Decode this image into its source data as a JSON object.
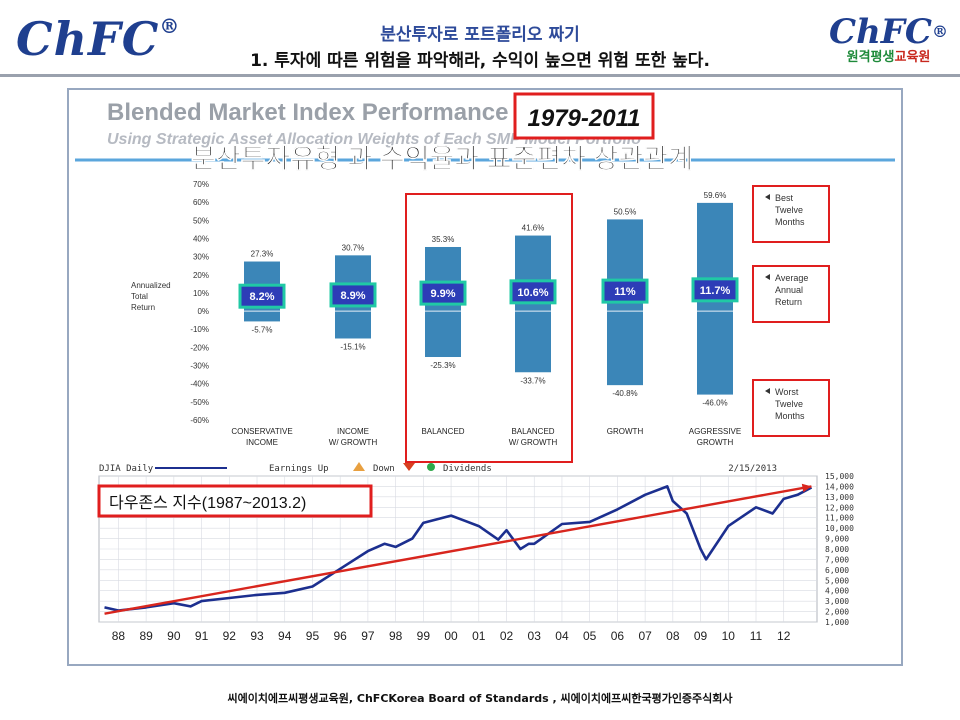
{
  "header": {
    "logo": "ChFC",
    "logo_mark": "®",
    "logo_right_mark": "ChFC",
    "logo_right_sub1": "원격평생",
    "logo_right_sub2": "교육원",
    "title_line1": "분산투자로 포트폴리오 짜기",
    "title_line2": "1. 투자에 따른 위험을 파악해라, 수익이 높으면 위험 또한 높다."
  },
  "footer": {
    "text": "씨에이치에프씨평생교육원, ChFCKorea Board of Standards , 씨에이치에프씨한국평가인증주식회사"
  },
  "colors": {
    "bar": "#3b86b8",
    "highlight_red": "#e01e1e",
    "avg_box_border": "#20c9a5",
    "avg_box_fill": "#2d3db7",
    "line_blue": "#1c2f8f",
    "trend_red": "#d8261e"
  },
  "chart_data": [
    {
      "type": "bar",
      "title": "Blended Market Index Performance",
      "subtitle": "Using Strategic Asset Allocation Weights of Each SMP Model Portfolio",
      "period": "1979-2011",
      "overlay_title": "분산투자유형 과 수익율과 표준편차 상관관계",
      "ylabel": "Annualized Total Return",
      "ylim": [
        -60,
        70
      ],
      "yticks": [
        "70%",
        "60%",
        "50%",
        "40%",
        "30%",
        "20%",
        "10%",
        "0%",
        "-10%",
        "-20%",
        "-30%",
        "-40%",
        "-50%",
        "-60%"
      ],
      "categories": [
        "CONSERVATIVE INCOME",
        "INCOME W/ GROWTH",
        "BALANCED",
        "BALANCED W/ GROWTH",
        "GROWTH",
        "AGGRESSIVE GROWTH"
      ],
      "series": [
        {
          "name": "Best Twelve Months",
          "values": [
            27.3,
            30.7,
            35.3,
            41.6,
            50.5,
            59.6
          ]
        },
        {
          "name": "Average Annual Return",
          "values": [
            8.2,
            8.9,
            9.9,
            10.6,
            11,
            11.7
          ]
        },
        {
          "name": "Worst Twelve Months",
          "values": [
            -5.7,
            -15.1,
            -25.3,
            -33.7,
            -40.8,
            -46.0
          ]
        }
      ],
      "best_labels": [
        "27.3%",
        "30.7%",
        "35.3%",
        "41.6%",
        "50.5%",
        "59.6%"
      ],
      "avg_labels": [
        "8.2%",
        "8.9%",
        "9.9%",
        "10.6%",
        "11%",
        "11.7%"
      ],
      "worst_labels": [
        "-5.7%",
        "-15.1%",
        "-25.3%",
        "-33.7%",
        "-40.8%",
        "-46.0%"
      ],
      "highlighted": [
        "BALANCED",
        "BALANCED W/ GROWTH"
      ],
      "legend": [
        "Best Twelve Months",
        "Average Annual Return",
        "Worst Twelve Months"
      ],
      "legend_placement": "right"
    },
    {
      "type": "line",
      "title": "다우존스 지수(1987~2013.2)",
      "header_left": "DJIA Daily",
      "header_mid": [
        "Earnings Up",
        "Down",
        "Dividends"
      ],
      "header_right": "2/15/2013",
      "xlabels": [
        "88",
        "89",
        "90",
        "91",
        "92",
        "93",
        "94",
        "95",
        "96",
        "97",
        "98",
        "99",
        "00",
        "01",
        "02",
        "03",
        "04",
        "05",
        "06",
        "07",
        "08",
        "09",
        "10",
        "11",
        "12"
      ],
      "yticks": [
        "15,000",
        "14,000",
        "13,000",
        "12,000",
        "11,000",
        "10,000",
        "9,000",
        "8,000",
        "7,000",
        "6,000",
        "5,000",
        "4,000",
        "3,000",
        "2,000",
        "1,000"
      ],
      "ylim": [
        1000,
        15000
      ],
      "grid": true,
      "x": [
        1987.5,
        1988,
        1989,
        1990,
        1990.6,
        1991,
        1992,
        1993,
        1994,
        1995,
        1996,
        1997,
        1997.6,
        1998,
        1998.6,
        1999,
        2000,
        2000.5,
        2001,
        2001.7,
        2002,
        2002.5,
        2002.8,
        2003,
        2004,
        2005,
        2006,
        2007,
        2007.8,
        2008,
        2008.5,
        2009,
        2009.2,
        2010,
        2011,
        2011.6,
        2012,
        2012.5,
        2013
      ],
      "values": [
        2400,
        2100,
        2400,
        2800,
        2500,
        3000,
        3300,
        3600,
        3800,
        4400,
        6100,
        7800,
        8500,
        8200,
        9000,
        10500,
        11200,
        10700,
        10200,
        8900,
        9800,
        8000,
        8500,
        8500,
        10400,
        10600,
        11800,
        13200,
        14000,
        12600,
        11400,
        8000,
        7000,
        10200,
        12000,
        11400,
        12800,
        13200,
        13900
      ],
      "trend": {
        "name": "trend",
        "x": [
          1987.5,
          2013
        ],
        "values": [
          1800,
          14000
        ]
      }
    }
  ]
}
